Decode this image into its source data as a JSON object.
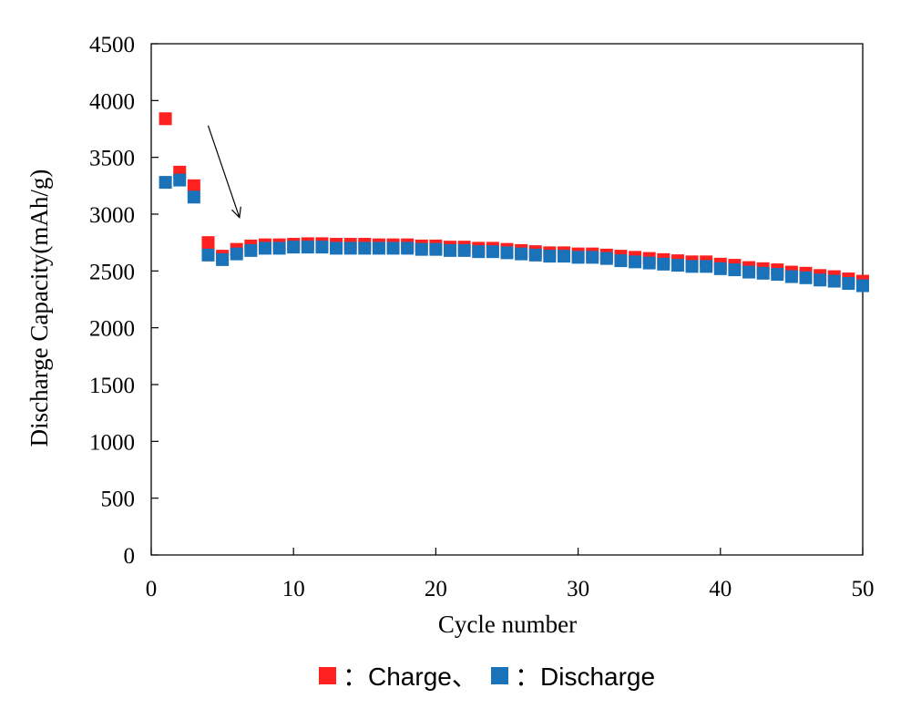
{
  "chart_data": {
    "type": "scatter",
    "title": "",
    "xlabel": "Cycle number",
    "ylabel": "Discharge Capacity(mAh/g)",
    "xlim": [
      0,
      50
    ],
    "ylim": [
      0,
      4500
    ],
    "xticks": [
      0,
      10,
      20,
      30,
      40,
      50
    ],
    "yticks": [
      0,
      500,
      1000,
      1500,
      2000,
      2500,
      3000,
      3500,
      4000,
      4500
    ],
    "grid": false,
    "legend_position": "bottom-center",
    "legend_text": {
      "charge": "：Charge、",
      "discharge": "：Discharge"
    },
    "series": [
      {
        "name": "Charge",
        "color": "#ff2020",
        "x": [
          1,
          2,
          3,
          4,
          5,
          6,
          7,
          8,
          9,
          10,
          11,
          12,
          13,
          14,
          15,
          16,
          17,
          18,
          19,
          20,
          21,
          22,
          23,
          24,
          25,
          26,
          27,
          28,
          29,
          30,
          31,
          32,
          33,
          34,
          35,
          36,
          37,
          38,
          39,
          40,
          41,
          42,
          43,
          44,
          45,
          46,
          47,
          48,
          49,
          50
        ],
        "y": [
          3840,
          3370,
          3250,
          2750,
          2630,
          2690,
          2720,
          2730,
          2730,
          2735,
          2740,
          2740,
          2735,
          2735,
          2735,
          2730,
          2730,
          2730,
          2720,
          2720,
          2710,
          2710,
          2700,
          2700,
          2690,
          2680,
          2670,
          2660,
          2660,
          2650,
          2650,
          2640,
          2630,
          2620,
          2610,
          2600,
          2590,
          2580,
          2580,
          2560,
          2550,
          2530,
          2520,
          2510,
          2490,
          2480,
          2460,
          2450,
          2430,
          2410
        ]
      },
      {
        "name": "Discharge",
        "color": "#1a73b8",
        "x": [
          1,
          2,
          3,
          4,
          5,
          6,
          7,
          8,
          9,
          10,
          11,
          12,
          13,
          14,
          15,
          16,
          17,
          18,
          19,
          20,
          21,
          22,
          23,
          24,
          25,
          26,
          27,
          28,
          29,
          30,
          31,
          32,
          33,
          34,
          35,
          36,
          37,
          38,
          39,
          40,
          41,
          42,
          43,
          44,
          45,
          46,
          47,
          48,
          49,
          50
        ],
        "y": [
          3280,
          3300,
          3150,
          2640,
          2600,
          2650,
          2680,
          2700,
          2700,
          2710,
          2710,
          2710,
          2700,
          2700,
          2700,
          2700,
          2700,
          2700,
          2690,
          2690,
          2680,
          2680,
          2670,
          2670,
          2660,
          2650,
          2640,
          2630,
          2630,
          2620,
          2620,
          2610,
          2590,
          2580,
          2570,
          2560,
          2550,
          2540,
          2540,
          2520,
          2510,
          2490,
          2480,
          2470,
          2450,
          2440,
          2420,
          2410,
          2390,
          2370
        ]
      }
    ],
    "annotation": {
      "type": "arrow",
      "from": [
        4,
        3780
      ],
      "to": [
        6.2,
        2970
      ]
    }
  }
}
